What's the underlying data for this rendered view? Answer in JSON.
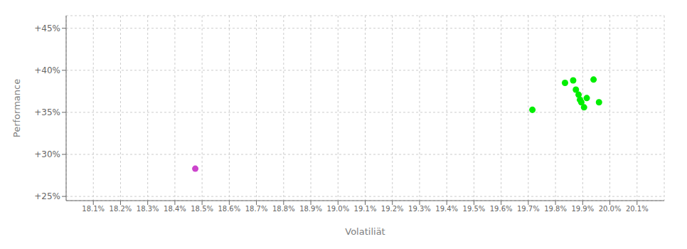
{
  "chart_data": {
    "type": "scatter",
    "xlabel": "Volatiliät",
    "ylabel": "Performance",
    "xlim": [
      18.0,
      20.2
    ],
    "ylim": [
      24.5,
      46.5
    ],
    "xticks": [
      {
        "value": 18.1,
        "label": "18.1%"
      },
      {
        "value": 18.2,
        "label": "18.2%"
      },
      {
        "value": 18.3,
        "label": "18.3%"
      },
      {
        "value": 18.4,
        "label": "18.4%"
      },
      {
        "value": 18.5,
        "label": "18.5%"
      },
      {
        "value": 18.6,
        "label": "18.6%"
      },
      {
        "value": 18.7,
        "label": "18.7%"
      },
      {
        "value": 18.8,
        "label": "18.8%"
      },
      {
        "value": 18.9,
        "label": "18.9%"
      },
      {
        "value": 19.0,
        "label": "19.0%"
      },
      {
        "value": 19.1,
        "label": "19.1%"
      },
      {
        "value": 19.2,
        "label": "19.2%"
      },
      {
        "value": 19.3,
        "label": "19.3%"
      },
      {
        "value": 19.4,
        "label": "19.4%"
      },
      {
        "value": 19.5,
        "label": "19.5%"
      },
      {
        "value": 19.6,
        "label": "19.6%"
      },
      {
        "value": 19.7,
        "label": "19.7%"
      },
      {
        "value": 19.8,
        "label": "19.8%"
      },
      {
        "value": 19.9,
        "label": "19.9%"
      },
      {
        "value": 20.0,
        "label": "20.0%"
      },
      {
        "value": 20.1,
        "label": "20.1%"
      }
    ],
    "yticks": [
      {
        "value": 25,
        "label": "+25%"
      },
      {
        "value": 30,
        "label": "+30%"
      },
      {
        "value": 35,
        "label": "+35%"
      },
      {
        "value": 40,
        "label": "+40%"
      },
      {
        "value": 45,
        "label": "+45%"
      }
    ],
    "grid": true,
    "series": [
      {
        "color": "#cc44cc",
        "x": [
          18.475
        ],
        "values": [
          28.3
        ]
      },
      {
        "color": "#00ee00",
        "x": [
          19.715,
          19.835,
          19.865,
          19.875,
          19.885,
          19.89,
          19.895,
          19.905,
          19.915,
          19.94,
          19.96
        ],
        "values": [
          35.3,
          38.5,
          38.8,
          37.7,
          37.1,
          36.5,
          36.2,
          35.6,
          36.7,
          38.9,
          36.2
        ]
      }
    ]
  }
}
